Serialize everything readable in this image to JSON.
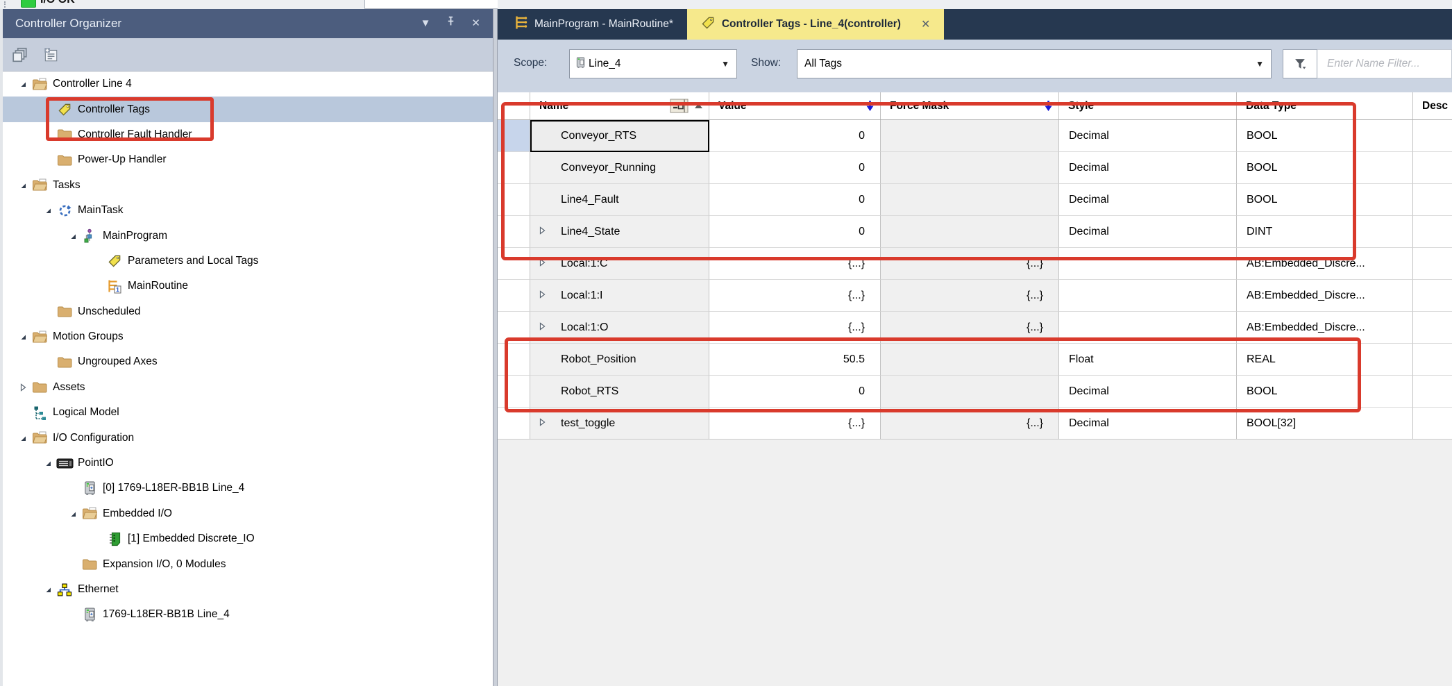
{
  "top_strip": {
    "status_text": "I/O OK"
  },
  "left_panel": {
    "title": "Controller Organizer",
    "titlebar_icons": [
      "chevron-down-icon",
      "pin-icon",
      "close-icon"
    ],
    "toolbar_icons": [
      "collapse-all-icon",
      "new-component-icon"
    ],
    "tree": {
      "items": [
        {
          "label": "Controller Line 4",
          "level": 0,
          "expander": "expanded",
          "icon": "folder-open-icon",
          "selected": false
        },
        {
          "label": "Controller Tags",
          "level": 1,
          "expander": "none",
          "icon": "tag-icon",
          "selected": true,
          "annotated": true
        },
        {
          "label": "Controller Fault Handler",
          "level": 1,
          "expander": "none",
          "icon": "folder-icon",
          "selected": false
        },
        {
          "label": "Power-Up Handler",
          "level": 1,
          "expander": "none",
          "icon": "folder-icon",
          "selected": false
        },
        {
          "label": "Tasks",
          "level": 0,
          "expander": "expanded",
          "icon": "folder-open-icon",
          "selected": false
        },
        {
          "label": "MainTask",
          "level": 1,
          "expander": "expanded",
          "icon": "task-icon",
          "selected": false
        },
        {
          "label": "MainProgram",
          "level": 2,
          "expander": "expanded",
          "icon": "program-icon",
          "selected": false
        },
        {
          "label": "Parameters and Local Tags",
          "level": 3,
          "expander": "none",
          "icon": "tag-icon",
          "selected": false
        },
        {
          "label": "MainRoutine",
          "level": 3,
          "expander": "none",
          "icon": "routine-icon",
          "selected": false
        },
        {
          "label": "Unscheduled",
          "level": 1,
          "expander": "none",
          "icon": "folder-icon",
          "selected": false
        },
        {
          "label": "Motion Groups",
          "level": 0,
          "expander": "expanded",
          "icon": "folder-open-icon",
          "selected": false
        },
        {
          "label": "Ungrouped Axes",
          "level": 1,
          "expander": "none",
          "icon": "folder-icon",
          "selected": false
        },
        {
          "label": "Assets",
          "level": 0,
          "expander": "collapsed",
          "icon": "folder-icon",
          "selected": false
        },
        {
          "label": "Logical Model",
          "level": 0,
          "expander": "none",
          "icon": "logical-model-icon",
          "selected": false
        },
        {
          "label": "I/O Configuration",
          "level": 0,
          "expander": "expanded",
          "icon": "folder-open-icon",
          "selected": false
        },
        {
          "label": "PointIO",
          "level": 1,
          "expander": "expanded",
          "icon": "backplane-icon",
          "selected": false
        },
        {
          "label": "[0] 1769-L18ER-BB1B Line_4",
          "level": 2,
          "expander": "none",
          "icon": "controller-icon",
          "selected": false
        },
        {
          "label": "Embedded I/O",
          "level": 2,
          "expander": "expanded",
          "icon": "folder-open-icon",
          "selected": false
        },
        {
          "label": "[1] Embedded Discrete_IO",
          "level": 3,
          "expander": "none",
          "icon": "io-module-icon",
          "selected": false
        },
        {
          "label": "Expansion I/O, 0 Modules",
          "level": 2,
          "expander": "none",
          "icon": "folder-icon",
          "selected": false
        },
        {
          "label": "Ethernet",
          "level": 1,
          "expander": "expanded",
          "icon": "ethernet-icon",
          "selected": false
        },
        {
          "label": "1769-L18ER-BB1B Line_4",
          "level": 2,
          "expander": "none",
          "icon": "controller-icon",
          "selected": false
        }
      ]
    }
  },
  "tabs": [
    {
      "label": "MainProgram - MainRoutine*",
      "icon": "ladder-icon",
      "active": false,
      "closable": false
    },
    {
      "label": "Controller Tags - Line_4(controller)",
      "icon": "tag-icon",
      "active": true,
      "closable": true
    }
  ],
  "filter_bar": {
    "scope_label": "Scope:",
    "scope_value": "Line_4",
    "scope_icon": "controller-icon",
    "show_label": "Show:",
    "show_value": "All Tags",
    "name_filter_placeholder": "Enter Name Filter..."
  },
  "tag_table": {
    "columns": [
      {
        "label": "Name",
        "sort": "ascending",
        "header_icons": [
          "properties-button",
          "sort-asc-arrow"
        ]
      },
      {
        "label": "Value",
        "header_icons": [
          "blue-monitor-arrow"
        ]
      },
      {
        "label": "Force Mask",
        "header_icons": [
          "blue-monitor-arrow"
        ]
      },
      {
        "label": "Style",
        "header_icons": []
      },
      {
        "label": "Data Type",
        "header_icons": []
      },
      {
        "label": "Desc",
        "header_icons": []
      }
    ],
    "rows": [
      {
        "name": "Conveyor_RTS",
        "expandable": false,
        "value": "0",
        "force_mask": "",
        "style": "Decimal",
        "data_type": "BOOL",
        "description": "",
        "selected": true
      },
      {
        "name": "Conveyor_Running",
        "expandable": false,
        "value": "0",
        "force_mask": "",
        "style": "Decimal",
        "data_type": "BOOL",
        "description": "",
        "selected": false
      },
      {
        "name": "Line4_Fault",
        "expandable": false,
        "value": "0",
        "force_mask": "",
        "style": "Decimal",
        "data_type": "BOOL",
        "description": "",
        "selected": false
      },
      {
        "name": "Line4_State",
        "expandable": true,
        "value": "0",
        "force_mask": "",
        "style": "Decimal",
        "data_type": "DINT",
        "description": "",
        "selected": false
      },
      {
        "name": "Local:1:C",
        "expandable": true,
        "value": "{...}",
        "force_mask": "{...}",
        "style": "",
        "data_type": "AB:Embedded_Discre...",
        "description": "",
        "selected": false
      },
      {
        "name": "Local:1:I",
        "expandable": true,
        "value": "{...}",
        "force_mask": "{...}",
        "style": "",
        "data_type": "AB:Embedded_Discre...",
        "description": "",
        "selected": false
      },
      {
        "name": "Local:1:O",
        "expandable": true,
        "value": "{...}",
        "force_mask": "{...}",
        "style": "",
        "data_type": "AB:Embedded_Discre...",
        "description": "",
        "selected": false
      },
      {
        "name": "Robot_Position",
        "expandable": false,
        "value": "50.5",
        "force_mask": "",
        "style": "Float",
        "data_type": "REAL",
        "description": "",
        "selected": false
      },
      {
        "name": "Robot_RTS",
        "expandable": false,
        "value": "0",
        "force_mask": "",
        "style": "Decimal",
        "data_type": "BOOL",
        "description": "",
        "selected": false
      },
      {
        "name": "test_toggle",
        "expandable": true,
        "value": "{...}",
        "force_mask": "{...}",
        "style": "Decimal",
        "data_type": "BOOL[32]",
        "description": "",
        "selected": false
      }
    ]
  },
  "annotations": {
    "highlight_color": "#D93A2C",
    "boxes": [
      {
        "target": "tree-item-controller-tags"
      },
      {
        "target": "tag-rows-conveyor-rts-through-line4-state"
      },
      {
        "target": "tag-rows-robot-position-through-robot-rts"
      }
    ]
  }
}
